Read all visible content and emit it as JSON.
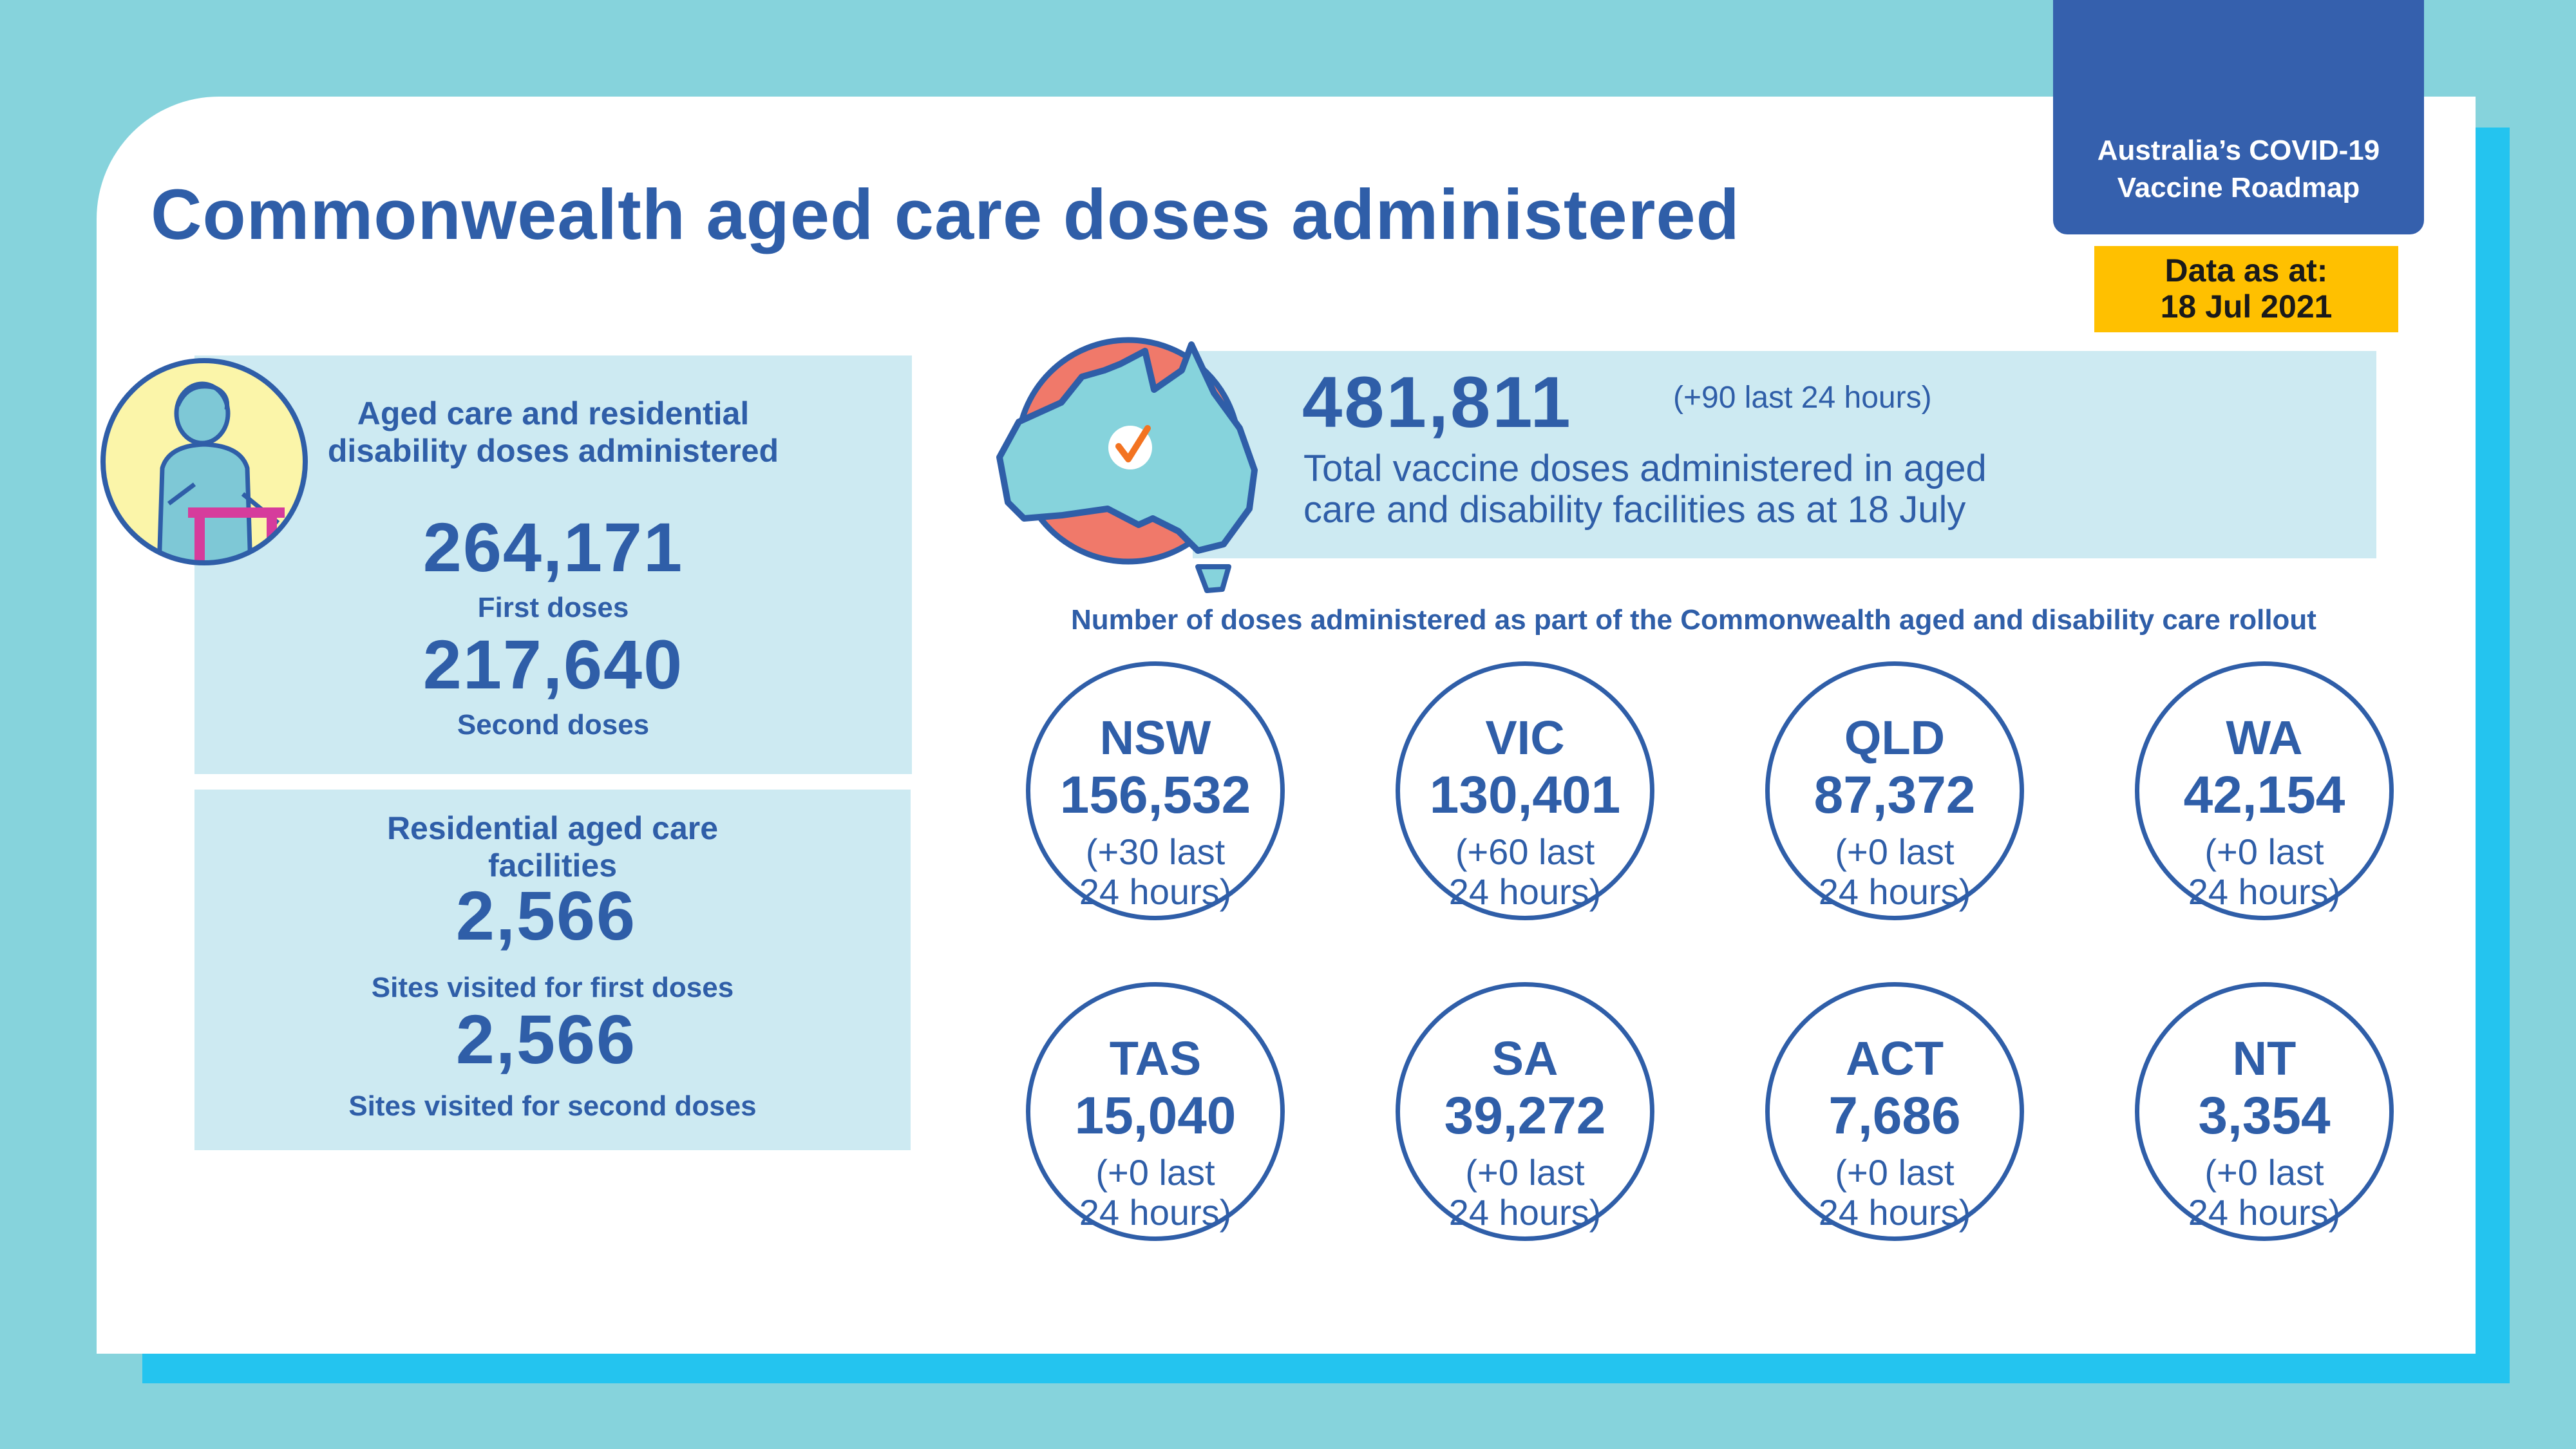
{
  "title": "Commonwealth aged care doses administered",
  "roadmap_badge": {
    "line1": "Australia’s COVID-19",
    "line2": "Vaccine Roadmap"
  },
  "data_as_at": {
    "label": "Data as at:",
    "date": "18 Jul 2021"
  },
  "aged_care_doses": {
    "heading_line1": "Aged care and residential",
    "heading_line2": "disability doses administered",
    "first_doses_value": "264,171",
    "first_doses_label": "First doses",
    "second_doses_value": "217,640",
    "second_doses_label": "Second doses"
  },
  "facilities": {
    "heading_line1": "Residential aged care",
    "heading_line2": "facilities",
    "first_sites_value": "2,566",
    "first_sites_label": "Sites visited for first doses",
    "second_sites_value": "2,566",
    "second_sites_label": "Sites visited for second doses"
  },
  "total": {
    "value": "481,811",
    "change": "(+90 last 24 hours)",
    "desc_line1": "Total vaccine doses administered in aged",
    "desc_line2": "care and disability facilities as at 18 July"
  },
  "rollout_caption": "Number of doses administered as part of the Commonwealth aged and disability care rollout",
  "states": [
    {
      "name": "NSW",
      "value": "156,532",
      "change1": "(+30 last",
      "change2": "24 hours)"
    },
    {
      "name": "VIC",
      "value": "130,401",
      "change1": "(+60 last",
      "change2": "24 hours)"
    },
    {
      "name": "QLD",
      "value": "87,372",
      "change1": "(+0 last",
      "change2": "24 hours)"
    },
    {
      "name": "WA",
      "value": "42,154",
      "change1": "(+0 last",
      "change2": "24 hours)"
    },
    {
      "name": "TAS",
      "value": "15,040",
      "change1": "(+0 last",
      "change2": "24 hours)"
    },
    {
      "name": "SA",
      "value": "39,272",
      "change1": "(+0 last",
      "change2": "24 hours)"
    },
    {
      "name": "ACT",
      "value": "7,686",
      "change1": "(+0 last",
      "change2": "24 hours)"
    },
    {
      "name": "NT",
      "value": "3,354",
      "change1": "(+0 last",
      "change2": "24 hours)"
    }
  ],
  "colors": {
    "brand_blue": "#2f5ea8",
    "badge_blue": "#3560ad",
    "panel": "#cdeaf2",
    "badge_yellow": "#ffc000",
    "accent_cyan": "#24c4ef",
    "background": "#86d3dc"
  }
}
